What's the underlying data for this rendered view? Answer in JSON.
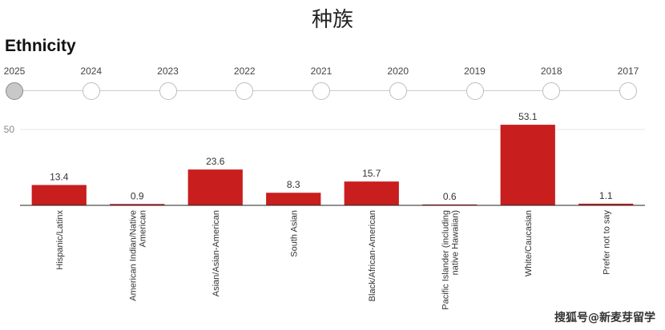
{
  "page_heading": "种族",
  "timeline": {
    "selected": "2025",
    "years": [
      "2025",
      "2024",
      "2023",
      "2022",
      "2021",
      "2020",
      "2019",
      "2018",
      "2017"
    ]
  },
  "watermark": "搜狐号@新麦芽留学",
  "colors": {
    "bar": "#c81e1e",
    "axis": "#222222",
    "grid": "#e6e6e6"
  },
  "chart_data": {
    "type": "bar",
    "title": "Ethnicity",
    "xlabel": "",
    "ylabel": "",
    "ylim": [
      0,
      60
    ],
    "yticks": [
      "50"
    ],
    "grid": true,
    "categories": [
      "Hispanic/Latinx",
      "American Indian/Native American",
      "Asian/Asian-American",
      "South Asian",
      "Black/African-American",
      "Pacific Islander (including native Hawaiian)",
      "White/Caucasian",
      "Prefer not to say"
    ],
    "category_lines": [
      [
        "Hispanic/Latinx"
      ],
      [
        "American Indian/Native",
        "American"
      ],
      [
        "Asian/Asian-American"
      ],
      [
        "South Asian"
      ],
      [
        "Black/African-American"
      ],
      [
        "Pacific Islander (including",
        "native Hawaiian)"
      ],
      [
        "White/Caucasian"
      ],
      [
        "Prefer not to say"
      ]
    ],
    "values": [
      13.4,
      0.9,
      23.6,
      8.3,
      15.7,
      0.6,
      53.1,
      1.1
    ],
    "value_labels": [
      "13.4",
      "0.9",
      "23.6",
      "8.3",
      "15.7",
      "0.6",
      "53.1",
      "1.1"
    ]
  }
}
